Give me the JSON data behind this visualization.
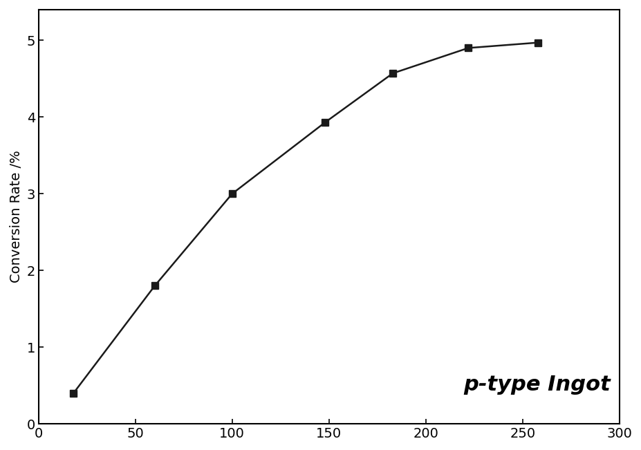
{
  "x": [
    18,
    60,
    100,
    148,
    183,
    222,
    258
  ],
  "y": [
    0.4,
    1.8,
    3.0,
    3.93,
    4.57,
    4.9,
    4.97
  ],
  "xlabel": "p-type Ingot",
  "ylabel": "Conversion Rate /%",
  "xlim": [
    0,
    300
  ],
  "ylim": [
    0,
    5.4
  ],
  "xticks": [
    0,
    50,
    100,
    150,
    200,
    250,
    300
  ],
  "yticks": [
    0,
    1,
    2,
    3,
    4,
    5
  ],
  "line_color": "#1a1a1a",
  "marker": "s",
  "marker_size": 7,
  "line_width": 1.8,
  "background_color": "#ffffff",
  "xlabel_fontsize": 22,
  "ylabel_fontsize": 14,
  "tick_fontsize": 14,
  "xlabel_weight": "bold",
  "xlabel_style": "italic"
}
